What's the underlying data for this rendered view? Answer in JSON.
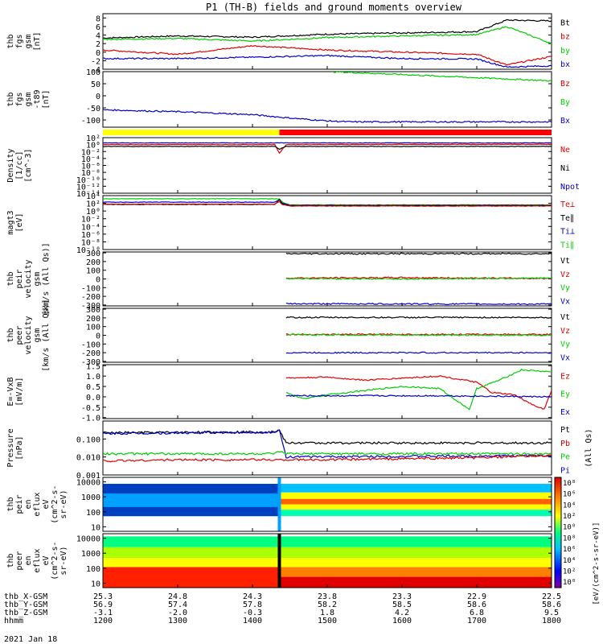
{
  "title": "P1 (TH-B) fields and ground moments overview",
  "date_label": "2021 Jan 18",
  "colors": {
    "black": "#000000",
    "red": "#e00000",
    "green": "#00cc00",
    "blue": "#0000cc",
    "yellow": "#ffff00",
    "bar_red": "#ff0000"
  },
  "time_axis": {
    "rows": [
      {
        "label": "thb_X-GSM",
        "values": [
          "25.3",
          "24.8",
          "24.3",
          "23.8",
          "23.3",
          "22.9",
          "22.5"
        ]
      },
      {
        "label": "thb_Y-GSM",
        "values": [
          "56.9",
          "57.4",
          "57.8",
          "58.2",
          "58.5",
          "58.6",
          "58.6"
        ]
      },
      {
        "label": "thb_Z-GSM",
        "values": [
          "-3.1",
          "-2.0",
          "-0.3",
          "1.8",
          "4.2",
          "6.8",
          "9.5"
        ]
      },
      {
        "label": "hhmm",
        "values": [
          "1200",
          "1300",
          "1400",
          "1500",
          "1600",
          "1700",
          "1800"
        ]
      }
    ]
  },
  "chart_data": [
    {
      "type": "line",
      "ylabel": [
        "thb",
        "fgs",
        "gsm",
        "[nT]"
      ],
      "ylim": [
        -4,
        9
      ],
      "yticks": [
        "8",
        "6",
        "4",
        "2",
        "0",
        "-2",
        "-4"
      ],
      "ytick_values": [
        8,
        6,
        4,
        2,
        0,
        -2,
        -4
      ],
      "legend": [
        {
          "name": "Bt",
          "color": "#000000"
        },
        {
          "name": "bz",
          "color": "#e00000"
        },
        {
          "name": "by",
          "color": "#00cc00"
        },
        {
          "name": "bx",
          "color": "#0000cc"
        }
      ],
      "series": [
        {
          "name": "Bt",
          "x": [
            1200,
            1300,
            1400,
            1500,
            1600,
            1700,
            1740,
            1800
          ],
          "values": [
            3.3,
            3.8,
            3.5,
            4.2,
            4.5,
            4.8,
            7.5,
            7.3
          ]
        },
        {
          "name": "bz",
          "x": [
            1200,
            1300,
            1400,
            1500,
            1600,
            1700,
            1740,
            1800
          ],
          "values": [
            0.5,
            -0.5,
            1.5,
            0.5,
            0,
            -0.5,
            -3,
            -1
          ]
        },
        {
          "name": "by",
          "x": [
            1200,
            1300,
            1400,
            1500,
            1600,
            1700,
            1740,
            1800
          ],
          "values": [
            3,
            3.2,
            2.6,
            3.4,
            3.8,
            4.1,
            6,
            2
          ]
        },
        {
          "name": "bx",
          "x": [
            1200,
            1300,
            1400,
            1500,
            1600,
            1700,
            1740,
            1800
          ],
          "values": [
            -1.5,
            -1.5,
            -1.2,
            -0.8,
            -1.5,
            -1.6,
            -3.5,
            -3.2
          ]
        }
      ]
    },
    {
      "type": "line",
      "ylabel": [
        "thb",
        "fgs",
        "gsm",
        "-t89",
        "[nT]"
      ],
      "ylim": [
        -130,
        100
      ],
      "yticks": [
        "100",
        "50",
        "0",
        "-50",
        "-100"
      ],
      "ytick_values": [
        100,
        50,
        0,
        -50,
        -100
      ],
      "legend": [
        {
          "name": "Bz",
          "color": "#e00000"
        },
        {
          "name": "By",
          "color": "#00cc00"
        },
        {
          "name": "Bx",
          "color": "#0000cc"
        }
      ],
      "series": [
        {
          "name": "By",
          "x": [
            1505,
            1600,
            1700,
            1800
          ],
          "values": [
            100,
            88,
            75,
            62
          ]
        },
        {
          "name": "Bx",
          "x": [
            1200,
            1300,
            1400,
            1450,
            1500,
            1530,
            1600,
            1700,
            1800
          ],
          "values": [
            -58,
            -66,
            -78,
            -92,
            -104,
            -108,
            -108,
            -108,
            -108
          ]
        }
      ]
    },
    {
      "type": "bar",
      "ylabel": [],
      "segments": [
        {
          "x": [
            1200,
            1436
          ],
          "color": "#ffff00"
        },
        {
          "x": [
            1436,
            1800
          ],
          "color": "#ff0000"
        }
      ]
    },
    {
      "type": "line",
      "ylabel": [
        "Density",
        "[1/cc]",
        "[cm^-3]"
      ],
      "scale": "log",
      "ylim": [
        1e-14,
        100
      ],
      "yticks": [
        "10²",
        "10⁰",
        "10⁻²",
        "10⁻⁴",
        "10⁻⁶",
        "10⁻⁸",
        "10⁻¹⁰",
        "10⁻¹²",
        "10⁻¹⁴"
      ],
      "ytick_values": [
        100,
        1,
        0.01,
        0.0001,
        1e-06,
        1e-08,
        1e-10,
        1e-12,
        1e-14
      ],
      "legend": [
        {
          "name": "Ne",
          "color": "#e00000"
        },
        {
          "name": "Ni",
          "color": "#000000"
        },
        {
          "name": "Npot",
          "color": "#0000cc"
        }
      ],
      "series": [
        {
          "name": "Ne",
          "x": [
            1200,
            1430,
            1436,
            1445,
            1800
          ],
          "values": [
            1,
            1,
            0.003,
            1,
            1.2
          ]
        },
        {
          "name": "Ni",
          "x": [
            1200,
            1430,
            1436,
            1445,
            1800
          ],
          "values": [
            0.3,
            0.3,
            0.05,
            0.3,
            0.3
          ]
        },
        {
          "name": "Npot",
          "x": [
            1200,
            1800
          ],
          "values": [
            3,
            3
          ]
        }
      ]
    },
    {
      "type": "line",
      "ylabel": [
        "magt3",
        "[eV]"
      ],
      "scale": "log",
      "ylim": [
        1e-10,
        10000
      ],
      "yticks": [
        "10⁴",
        "10²",
        "10⁰",
        "10⁻²",
        "10⁻⁴",
        "10⁻⁶",
        "10⁻⁸",
        "10⁻¹⁰"
      ],
      "ytick_values": [
        10000,
        100,
        1,
        0.01,
        0.0001,
        1e-06,
        1e-08,
        1e-10
      ],
      "legend": [
        {
          "name": "Te⊥",
          "color": "#e00000"
        },
        {
          "name": "Te∥",
          "color": "#000000"
        },
        {
          "name": "Ti⊥",
          "color": "#0000cc"
        },
        {
          "name": "Ti∥",
          "color": "#00cc00"
        }
      ],
      "series": [
        {
          "name": "Ti∥",
          "x": [
            1200,
            1430,
            1436,
            1440,
            1450,
            1800
          ],
          "values": [
            1500,
            1500,
            1500,
            200,
            40,
            40
          ]
        },
        {
          "name": "Ti⊥",
          "x": [
            1200,
            1430,
            1436,
            1440,
            1450,
            1800
          ],
          "values": [
            200,
            200,
            900,
            100,
            30,
            30
          ]
        },
        {
          "name": "Te∥",
          "x": [
            1200,
            1430,
            1436,
            1440,
            1450,
            1800
          ],
          "values": [
            50,
            50,
            1000,
            60,
            25,
            25
          ]
        },
        {
          "name": "Te⊥",
          "x": [
            1200,
            1430,
            1436,
            1440,
            1450,
            1800
          ],
          "values": [
            60,
            60,
            300,
            50,
            20,
            20
          ]
        }
      ]
    },
    {
      "type": "line",
      "ylabel": [
        "thb",
        "peir",
        "velocity",
        "gsm",
        "[km/s (All Qs)]"
      ],
      "ylim": [
        -310,
        310
      ],
      "yticks": [
        "300",
        "200",
        "100",
        "0",
        "-100",
        "-200",
        "-300"
      ],
      "ytick_values": [
        300,
        200,
        100,
        0,
        -100,
        -200,
        -300
      ],
      "legend": [
        {
          "name": "Vt",
          "color": "#000000"
        },
        {
          "name": "Vz",
          "color": "#e00000"
        },
        {
          "name": "Vy",
          "color": "#00cc00"
        },
        {
          "name": "Vx",
          "color": "#0000cc"
        }
      ],
      "series": [
        {
          "name": "Vt",
          "x": [
            1445,
            1800
          ],
          "values": [
            290,
            290
          ]
        },
        {
          "name": "Vz",
          "x": [
            1445,
            1600,
            1800
          ],
          "values": [
            10,
            15,
            5
          ]
        },
        {
          "name": "Vy",
          "x": [
            1445,
            1600,
            1800
          ],
          "values": [
            5,
            0,
            10
          ]
        },
        {
          "name": "Vx",
          "x": [
            1445,
            1800
          ],
          "values": [
            -285,
            -290
          ]
        }
      ]
    },
    {
      "type": "line",
      "ylabel": [
        "thb",
        "peer",
        "velocity",
        "gsm",
        "[km/s (All Qs)]"
      ],
      "ylim": [
        -310,
        310
      ],
      "yticks": [
        "300",
        "200",
        "100",
        "0",
        "-100",
        "-200",
        "-300"
      ],
      "ytick_values": [
        300,
        200,
        100,
        0,
        -100,
        -200,
        -300
      ],
      "legend": [
        {
          "name": "Vt",
          "color": "#000000"
        },
        {
          "name": "Vz",
          "color": "#e00000"
        },
        {
          "name": "Vy",
          "color": "#00cc00"
        },
        {
          "name": "Vx",
          "color": "#0000cc"
        }
      ],
      "series": [
        {
          "name": "Vt",
          "x": [
            1445,
            1800
          ],
          "values": [
            205,
            205
          ]
        },
        {
          "name": "Vz",
          "x": [
            1445,
            1800
          ],
          "values": [
            10,
            10
          ]
        },
        {
          "name": "Vy",
          "x": [
            1445,
            1800
          ],
          "values": [
            5,
            0
          ]
        },
        {
          "name": "Vx",
          "x": [
            1445,
            1800
          ],
          "values": [
            -200,
            -200
          ]
        }
      ]
    },
    {
      "type": "line",
      "ylabel": [
        "E=-VxB",
        "[mV/m]"
      ],
      "ylim": [
        -1.05,
        1.55
      ],
      "yticks": [
        "1.5",
        "1.0",
        "0.5",
        "0.0",
        "-0.5",
        "-1.0"
      ],
      "ytick_values": [
        1.5,
        1.0,
        0.5,
        0.0,
        -0.5,
        -1.0
      ],
      "legend": [
        {
          "name": "Ez",
          "color": "#e00000"
        },
        {
          "name": "Ey",
          "color": "#00cc00"
        },
        {
          "name": "Ex",
          "color": "#0000cc"
        }
      ],
      "series": [
        {
          "name": "Ez",
          "x": [
            1445,
            1500,
            1550,
            1600,
            1650,
            1700,
            1720,
            1750,
            1770,
            1790,
            1800
          ],
          "values": [
            0.9,
            0.95,
            0.8,
            0.9,
            1.0,
            0.7,
            0.2,
            0.1,
            -0.3,
            -0.6,
            0.3
          ]
        },
        {
          "name": "Ey",
          "x": [
            1445,
            1470,
            1500,
            1550,
            1600,
            1650,
            1690,
            1700,
            1730,
            1760,
            1800
          ],
          "values": [
            0.2,
            -0.1,
            0.1,
            0.3,
            0.5,
            0.4,
            -0.6,
            0.4,
            0.8,
            1.3,
            1.2
          ]
        },
        {
          "name": "Ex",
          "x": [
            1445,
            1550,
            1650,
            1800
          ],
          "values": [
            0.05,
            0.05,
            0.05,
            0.0
          ]
        }
      ]
    },
    {
      "type": "line",
      "ylabel": [
        "Pressure",
        "[nPa]"
      ],
      "scale": "log",
      "ylim": [
        0.001,
        1
      ],
      "yticks": [
        "0.100",
        "0.010",
        "0.001"
      ],
      "ytick_values": [
        0.1,
        0.01,
        0.001
      ],
      "right_label": "(All Qs)",
      "legend": [
        {
          "name": "Pt",
          "color": "#000000"
        },
        {
          "name": "Pb",
          "color": "#e00000"
        },
        {
          "name": "Pe",
          "color": "#00cc00"
        },
        {
          "name": "Pi",
          "color": "#0000cc"
        }
      ],
      "series": [
        {
          "name": "Pt",
          "x": [
            1200,
            1430,
            1436,
            1445,
            1800
          ],
          "values": [
            0.22,
            0.25,
            0.3,
            0.06,
            0.06
          ]
        },
        {
          "name": "Pi",
          "x": [
            1200,
            1430,
            1436,
            1445,
            1800
          ],
          "values": [
            0.2,
            0.24,
            0.3,
            0.01,
            0.012
          ]
        },
        {
          "name": "Pe",
          "x": [
            1200,
            1430,
            1436,
            1445,
            1800
          ],
          "values": [
            0.015,
            0.015,
            0.02,
            0.015,
            0.015
          ]
        },
        {
          "name": "Pb",
          "x": [
            1200,
            1300,
            1400,
            1500,
            1600,
            1700,
            1800
          ],
          "values": [
            0.006,
            0.007,
            0.007,
            0.007,
            0.008,
            0.009,
            0.012
          ]
        }
      ]
    },
    {
      "type": "heatmap",
      "ylabel": [
        "thb",
        "peir",
        "en",
        "eflux",
        "eV",
        "(cm^2-s-",
        "sr-eV)"
      ],
      "scale": "log",
      "ylim": [
        5,
        20000
      ],
      "yticks": [
        "10000",
        "1000",
        "100",
        "10"
      ],
      "ytick_values": [
        10000,
        1000,
        100,
        10
      ]
    },
    {
      "type": "heatmap",
      "ylabel": [
        "thb",
        "peer",
        "en",
        "eflux",
        "eV",
        "(cm^2-s-",
        "sr-eV)"
      ],
      "scale": "log",
      "ylim": [
        5,
        20000
      ],
      "yticks": [
        "10000",
        "1000",
        "100",
        "10"
      ],
      "ytick_values": [
        10000,
        1000,
        100,
        10
      ]
    }
  ],
  "colorbar": {
    "ticks": [
      "10⁸",
      "10⁶",
      "10⁴",
      "10²",
      "10⁰",
      "10⁸",
      "10⁶",
      "10⁴",
      "10²",
      "10⁰"
    ],
    "label": "[eV/(cm^2-s-sr-eV)]"
  }
}
